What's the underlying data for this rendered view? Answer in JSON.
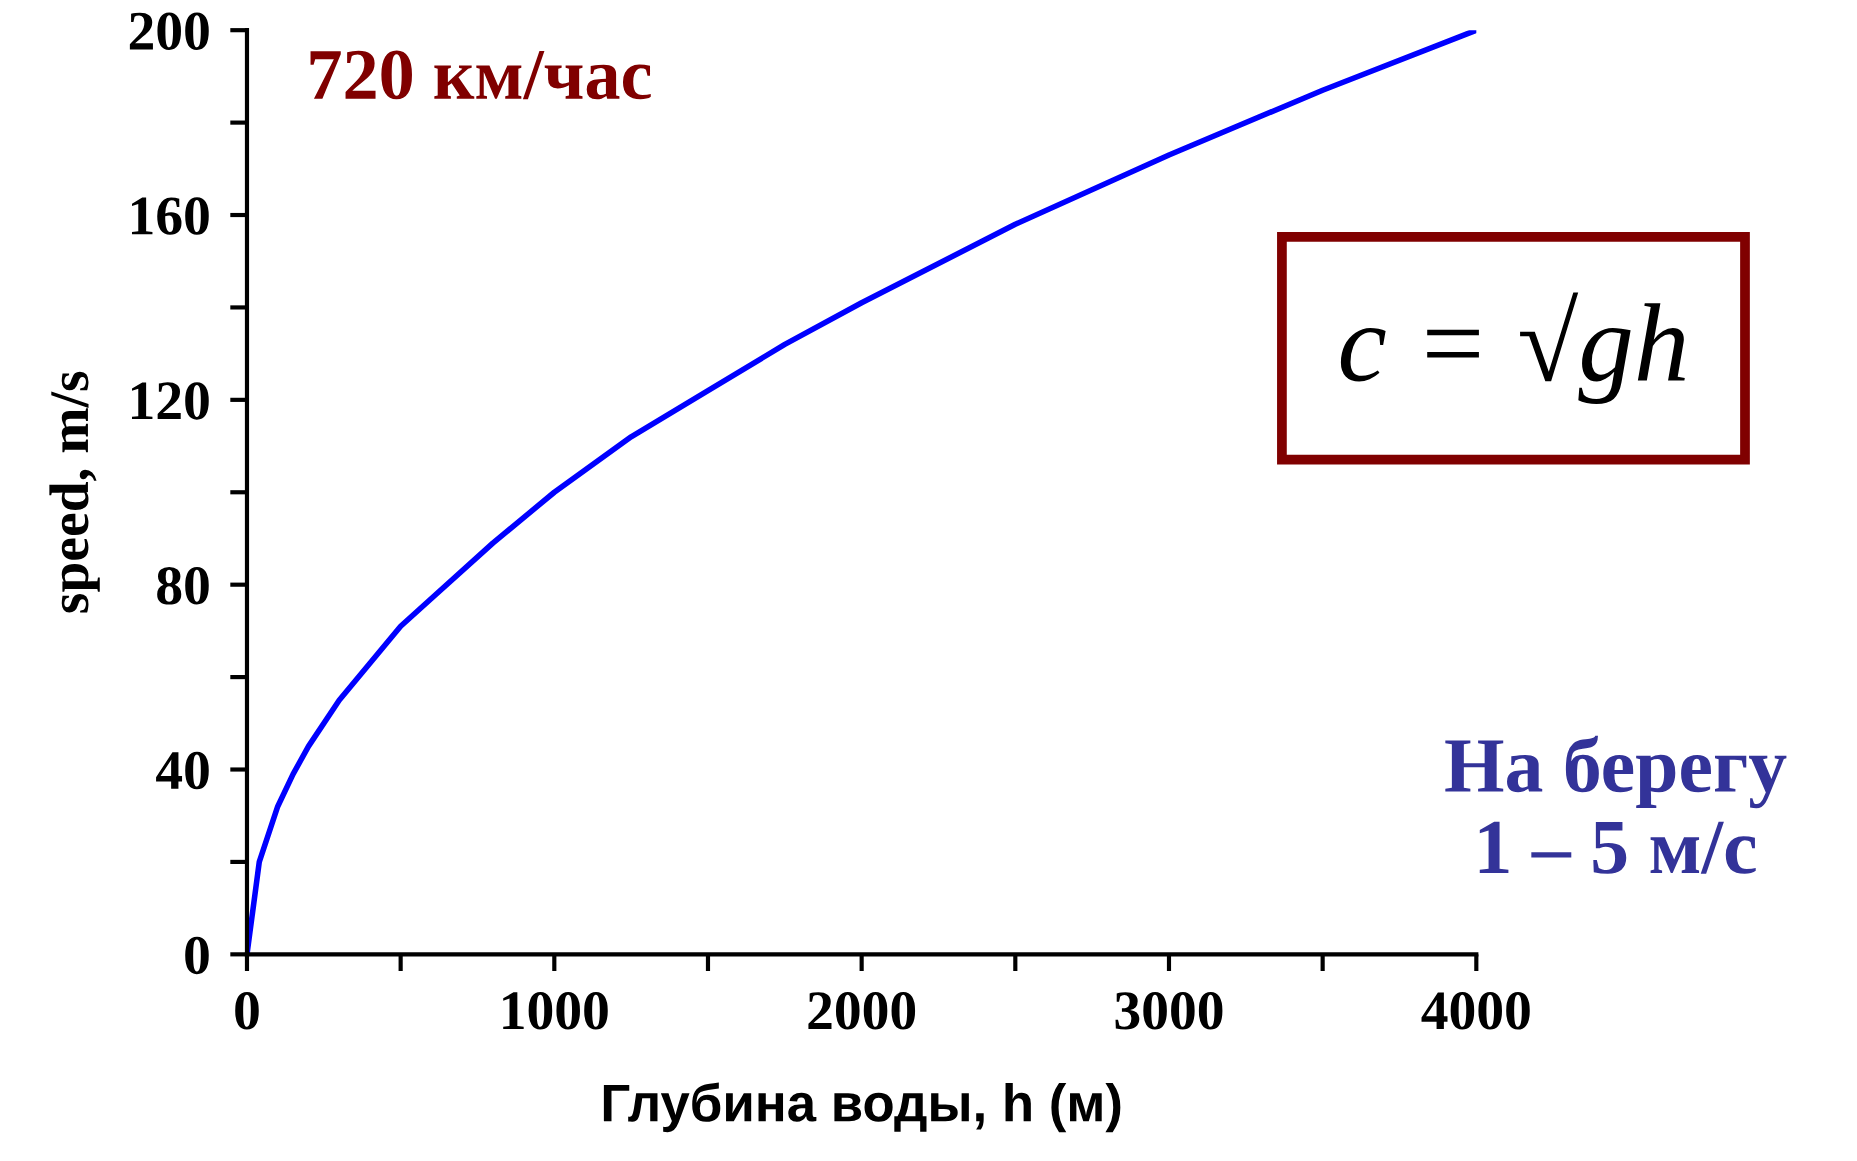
{
  "chart_data": {
    "type": "line",
    "xlabel": "Глубина воды, h (м)",
    "ylabel": "speed, m/s",
    "x": [
      0,
      40,
      100,
      150,
      200,
      300,
      400,
      500,
      600,
      800,
      1000,
      1250,
      1500,
      1750,
      2000,
      2500,
      3000,
      3500,
      4000
    ],
    "series": [
      {
        "color": "#0000ff",
        "values": [
          0,
          20,
          32,
          39,
          45,
          55,
          63,
          71,
          77,
          89,
          100,
          112,
          122,
          132,
          141,
          158,
          173,
          187,
          200
        ]
      }
    ],
    "xlim": [
      0,
      4000
    ],
    "ylim": [
      0,
      200
    ],
    "xticks": [
      0,
      1000,
      2000,
      3000,
      4000
    ],
    "yticks": [
      0,
      40,
      80,
      120,
      160,
      200
    ],
    "annotations": [
      "720 км/час",
      "c = √gh",
      "На берегу\n1 – 5 м/с"
    ],
    "grid": false,
    "legend": false,
    "marker": "none",
    "line_style": "solid"
  }
}
